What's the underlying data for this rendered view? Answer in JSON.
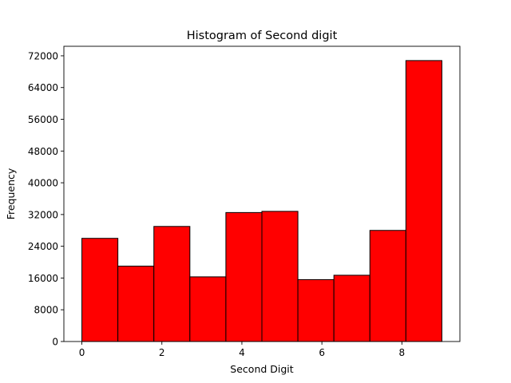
{
  "chart_data": {
    "type": "bar",
    "title": "Histogram of Second digit",
    "xlabel": "Second Digit",
    "ylabel": "Frequency",
    "bar_color": "#ff0000",
    "edge_color": "#000000",
    "bin_edges": [
      0,
      0.9,
      1.8,
      2.7,
      3.6,
      4.5,
      5.4,
      6.3,
      7.2,
      8.1,
      9.0
    ],
    "values": [
      26000,
      19000,
      29000,
      16300,
      32500,
      32800,
      15600,
      16700,
      28000,
      70800
    ],
    "xlim": [
      -0.45,
      9.45
    ],
    "ylim": [
      0,
      74400
    ],
    "xticks": [
      0,
      2,
      4,
      6,
      8
    ],
    "xtick_labels": [
      "0",
      "2",
      "4",
      "6",
      "8"
    ],
    "yticks": [
      0,
      8000,
      16000,
      24000,
      32000,
      40000,
      48000,
      56000,
      64000,
      72000
    ],
    "ytick_labels": [
      "0",
      "8000",
      "16000",
      "24000",
      "32000",
      "40000",
      "48000",
      "56000",
      "64000",
      "72000"
    ],
    "grid": false,
    "legend": false
  }
}
